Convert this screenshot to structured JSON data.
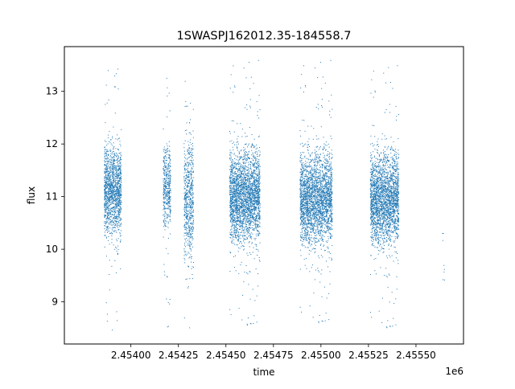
{
  "chart_data": {
    "type": "scatter",
    "title": "1SWASPJ162012.35-184558.7",
    "xlabel": "time",
    "ylabel": "flux",
    "x_offset_label": "1e6",
    "xlim": [
      2.45365,
      2.45575
    ],
    "ylim": [
      8.2,
      13.85
    ],
    "x_ticks": [
      2.454,
      2.45425,
      2.4545,
      2.45475,
      2.455,
      2.45525,
      2.4555
    ],
    "x_tick_labels": [
      "2.45400",
      "2.45425",
      "2.45450",
      "2.45475",
      "2.45500",
      "2.45525",
      "2.45550"
    ],
    "y_ticks": [
      9,
      10,
      11,
      12,
      13
    ],
    "y_tick_labels": [
      "9",
      "10",
      "11",
      "12",
      "13"
    ],
    "grid": false,
    "legend": false,
    "marker_color": "#1f77b4",
    "observing_seasons": [
      {
        "time_start": 2.45386,
        "time_end": 2.45395,
        "flux_center": 11.1,
        "flux_spread": 0.42,
        "flux_min": 8.45,
        "flux_max": 13.55,
        "n_points": 1400
      },
      {
        "time_start": 2.45417,
        "time_end": 2.45421,
        "flux_center": 11.2,
        "flux_spread": 0.38,
        "flux_min": 8.45,
        "flux_max": 13.4,
        "n_points": 450
      },
      {
        "time_start": 2.45428,
        "time_end": 2.45433,
        "flux_center": 10.9,
        "flux_spread": 0.55,
        "flux_min": 8.45,
        "flux_max": 13.3,
        "n_points": 650
      },
      {
        "time_start": 2.45452,
        "time_end": 2.45468,
        "flux_center": 11.0,
        "flux_spread": 0.42,
        "flux_min": 8.5,
        "flux_max": 13.6,
        "n_points": 2600
      },
      {
        "time_start": 2.45489,
        "time_end": 2.45506,
        "flux_center": 10.95,
        "flux_spread": 0.42,
        "flux_min": 8.55,
        "flux_max": 13.6,
        "n_points": 2600
      },
      {
        "time_start": 2.45526,
        "time_end": 2.45541,
        "flux_center": 10.95,
        "flux_spread": 0.42,
        "flux_min": 8.45,
        "flux_max": 13.5,
        "n_points": 2400
      },
      {
        "time_start": 2.45564,
        "time_end": 2.45565,
        "flux_center": 9.8,
        "flux_spread": 0.5,
        "flux_min": 8.8,
        "flux_max": 10.3,
        "n_points": 8
      }
    ]
  }
}
